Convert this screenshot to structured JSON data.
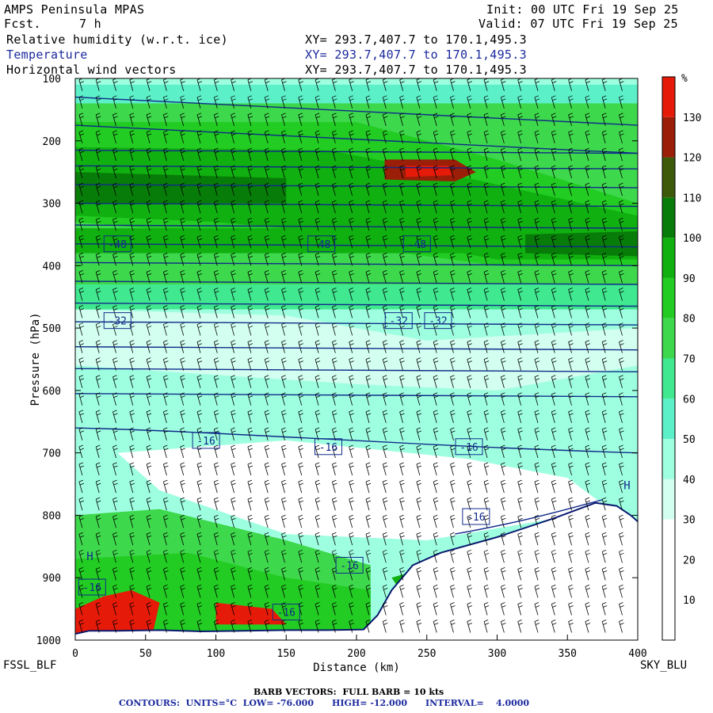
{
  "header": {
    "model": "AMPS Peninsula MPAS",
    "fcst_label": "Fcst.",
    "fcst_value": "7 h",
    "init": "Init: 00 UTC Fri 19 Sep 25",
    "valid": "Valid: 07 UTC Fri 19 Sep 25",
    "fields": [
      {
        "name": "Relative humidity (w.r.t. ice)",
        "xy": "XY= 293.7,407.7 to 170.1,495.3",
        "color": "#000000"
      },
      {
        "name": "Temperature",
        "xy": "XY= 293.7,407.7 to 170.1,495.3",
        "color": "#1b2a9e"
      },
      {
        "name": "Horizontal wind vectors",
        "xy": "XY= 293.7,407.7 to 170.1,495.3",
        "color": "#000000"
      }
    ]
  },
  "endpoints": {
    "left": "FSSL_BLF",
    "right": "SKY_BLU"
  },
  "footer": {
    "barb": "BARB VECTORS:  FULL BARB = 10 kts",
    "contours": "CONTOURS:  UNITS=°C  LOW= -76.000      HIGH= -12.000      INTERVAL=    4.0000"
  },
  "chart_data": {
    "type": "heatmap",
    "xlabel": "Distance (km)",
    "ylabel": "Pressure (hPa)",
    "xlim": [
      0,
      400
    ],
    "ylim": [
      1000,
      100
    ],
    "xticks": [
      0,
      50,
      100,
      150,
      200,
      250,
      300,
      350,
      400
    ],
    "yticks": [
      100,
      200,
      300,
      400,
      500,
      600,
      700,
      800,
      900,
      1000
    ],
    "colorbar": {
      "unit": "%",
      "levels": [
        0,
        10,
        20,
        30,
        40,
        50,
        60,
        70,
        80,
        90,
        100,
        110,
        120,
        130,
        140
      ],
      "tick_labels": [
        10,
        20,
        30,
        40,
        50,
        60,
        70,
        80,
        90,
        100,
        110,
        120,
        130
      ],
      "colors": [
        "#ffffff",
        "#ffffff",
        "#ffffff",
        "#d2fff0",
        "#9effe0",
        "#5cf0c8",
        "#40e890",
        "#3ed84c",
        "#22cc22",
        "#10b010",
        "#087c08",
        "#3d5a0a",
        "#9a1e08",
        "#e61a08"
      ]
    },
    "temperature_contours": [
      {
        "label": "-48",
        "x": 30,
        "p": 365
      },
      {
        "label": "-48",
        "x": 175,
        "p": 365
      },
      {
        "label": "-48",
        "x": 243,
        "p": 365
      },
      {
        "label": "-32",
        "x": 30,
        "p": 488
      },
      {
        "label": "-32",
        "x": 230,
        "p": 488
      },
      {
        "label": "-32",
        "x": 258,
        "p": 488
      },
      {
        "label": "-16",
        "x": 93,
        "p": 680
      },
      {
        "label": "-16",
        "x": 180,
        "p": 690
      },
      {
        "label": "-16",
        "x": 280,
        "p": 690
      },
      {
        "label": "-16",
        "x": 285,
        "p": 802
      },
      {
        "label": "-16",
        "x": 195,
        "p": 880
      },
      {
        "label": "-16",
        "x": 150,
        "p": 955
      },
      {
        "label": "-16",
        "x": 12,
        "p": 915
      }
    ],
    "highs": [
      {
        "label": "H",
        "x": 8,
        "p": 872
      },
      {
        "label": "H",
        "x": 390,
        "p": 758
      }
    ],
    "terrain_surface": [
      {
        "x": 0,
        "p": 990
      },
      {
        "x": 10,
        "p": 985
      },
      {
        "x": 30,
        "p": 985
      },
      {
        "x": 60,
        "p": 984
      },
      {
        "x": 90,
        "p": 986
      },
      {
        "x": 120,
        "p": 985
      },
      {
        "x": 150,
        "p": 984
      },
      {
        "x": 180,
        "p": 984
      },
      {
        "x": 205,
        "p": 983
      },
      {
        "x": 215,
        "p": 960
      },
      {
        "x": 225,
        "p": 920
      },
      {
        "x": 240,
        "p": 880
      },
      {
        "x": 260,
        "p": 860
      },
      {
        "x": 300,
        "p": 835
      },
      {
        "x": 340,
        "p": 805
      },
      {
        "x": 370,
        "p": 780
      },
      {
        "x": 385,
        "p": 785
      },
      {
        "x": 395,
        "p": 800
      },
      {
        "x": 400,
        "p": 810
      }
    ]
  }
}
